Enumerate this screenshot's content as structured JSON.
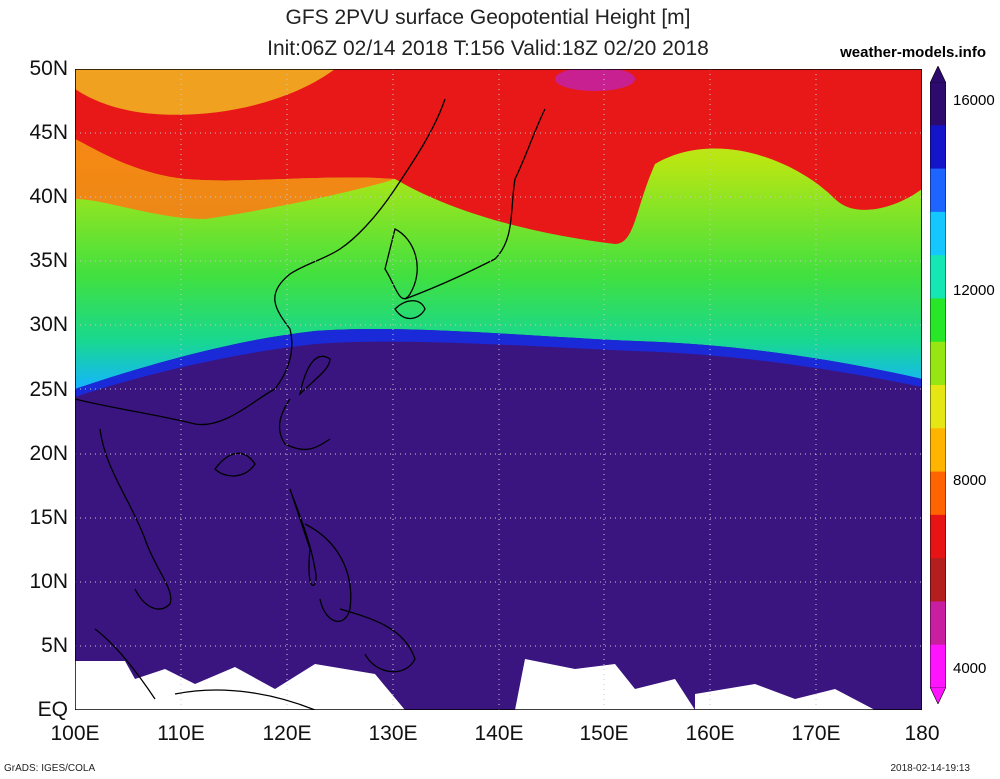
{
  "title_line1": "GFS 2PVU surface Geopotential Height [m]",
  "title_line2": "Init:06Z 02/14 2018 T:156 Valid:18Z 02/20 2018",
  "brand": "weather-models.info",
  "footer_left": "GrADS: IGES/COLA",
  "footer_right": "2018-02-14-19:13",
  "map_data": {
    "projection": "latlon",
    "lon_range": [
      100,
      180
    ],
    "lat_range": [
      0,
      50
    ],
    "lat_labels": [
      "50N",
      "45N",
      "40N",
      "35N",
      "30N",
      "25N",
      "20N",
      "15N",
      "10N",
      "5N",
      "EQ"
    ],
    "lon_labels": [
      "100E",
      "110E",
      "120E",
      "130E",
      "140E",
      "150E",
      "160E",
      "170E",
      "180"
    ],
    "variable": "2PVU surface geopotential height",
    "units": "m",
    "colorbar": {
      "min": 4000,
      "max": 16000,
      "labels": [
        "16000",
        "12000",
        "8000",
        "4000"
      ],
      "colors": [
        "#2d0a6e",
        "#1414c8",
        "#1e64ff",
        "#14c8ff",
        "#14e6b4",
        "#28e628",
        "#96e614",
        "#e6e614",
        "#ffb400",
        "#ff6400",
        "#e61414",
        "#b41e1e",
        "#c81ea0",
        "#ff14ff"
      ]
    },
    "colors": {
      "high_tropics": "#3a1580",
      "mid_green": "#30dc30",
      "low_red": "#e81818",
      "missing": "#ffffff",
      "coast": "#000000"
    }
  }
}
